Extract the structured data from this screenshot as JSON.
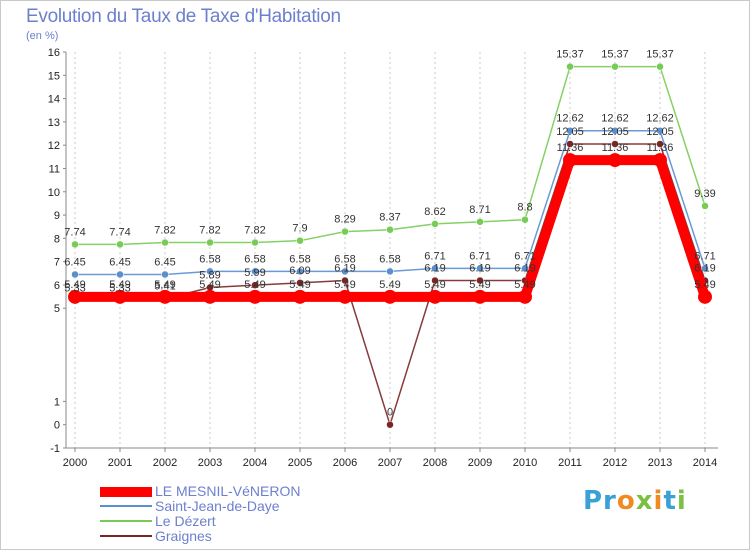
{
  "chart_data": {
    "type": "line",
    "title": "Evolution du Taux de Taxe d'Habitation",
    "subtitle": "(en %)",
    "xlabel": "",
    "ylabel": "",
    "ylim": [
      -1,
      16
    ],
    "yticks": [
      "-1",
      "0",
      "1",
      "5",
      "6",
      "7",
      "8",
      "9",
      "10",
      "11",
      "12",
      "13",
      "14",
      "15",
      "16"
    ],
    "ytick_values": [
      -1,
      0,
      1,
      5,
      6,
      7,
      8,
      9,
      10,
      11,
      12,
      13,
      14,
      15,
      16
    ],
    "x": [
      "2000",
      "2001",
      "2002",
      "2003",
      "2004",
      "2005",
      "2006",
      "2007",
      "2008",
      "2009",
      "2010",
      "2011",
      "2012",
      "2013",
      "2014"
    ],
    "series": [
      {
        "name": "Graignes",
        "color": "#7a2626",
        "values": [
          5.33,
          5.33,
          5.41,
          5.89,
          5.99,
          6.09,
          6.19,
          0,
          6.19,
          6.19,
          6.19,
          12.05,
          12.05,
          12.05,
          6.19
        ],
        "labels": [
          "5.33",
          "5.33",
          "5.41",
          "5.89",
          "5.99",
          "6.09",
          "6.19",
          "0",
          "6.19",
          "6.19",
          "6.19",
          "12.05",
          "12.05",
          "12.05",
          "6.19"
        ]
      },
      {
        "name": "Le Dézert",
        "color": "#77cc55",
        "values": [
          7.74,
          7.74,
          7.82,
          7.82,
          7.82,
          7.9,
          8.29,
          8.37,
          8.62,
          8.71,
          8.8,
          15.37,
          15.37,
          15.37,
          9.39
        ],
        "labels": [
          "7.74",
          "7.74",
          "7.82",
          "7.82",
          "7.82",
          "7.9",
          "8.29",
          "8.37",
          "8.62",
          "8.71",
          "8.8",
          "15.37",
          "15.37",
          "15.37",
          "9.39"
        ]
      },
      {
        "name": "Saint-Jean-de-Daye",
        "color": "#5a8fd0",
        "values": [
          6.45,
          6.45,
          6.45,
          6.58,
          6.58,
          6.58,
          6.58,
          6.58,
          6.71,
          6.71,
          6.71,
          12.62,
          12.62,
          12.62,
          6.71
        ],
        "labels": [
          "6.45",
          "6.45",
          "6.45",
          "6.58",
          "6.58",
          "6.58",
          "6.58",
          "6.58",
          "6.71",
          "6.71",
          "6.71",
          "12.62",
          "12.62",
          "12.62",
          "6.71"
        ]
      },
      {
        "name": "LE MESNIL-VéNERON",
        "color": "#ff0000",
        "values": [
          5.49,
          5.49,
          5.49,
          5.49,
          5.49,
          5.49,
          5.49,
          5.49,
          5.49,
          5.49,
          5.49,
          11.36,
          11.36,
          11.36,
          5.49
        ],
        "labels": [
          "5.49",
          "5.49",
          "5.49",
          "5.49",
          "5.49",
          "5.49",
          "5.49",
          "5.49",
          "5.49",
          "5.49",
          "5.49",
          "11.36",
          "11.36",
          "11.36",
          "5.49"
        ]
      }
    ],
    "legend_position": "bottom-left",
    "grid": "vertical-dashed"
  },
  "legend": [
    {
      "name": "LE MESNIL-VéNERON",
      "color": "#ff0000"
    },
    {
      "name": "Saint-Jean-de-Daye",
      "color": "#5a8fd0"
    },
    {
      "name": "Le Dézert",
      "color": "#77cc55"
    },
    {
      "name": "Graignes",
      "color": "#7a2626"
    }
  ],
  "logo": {
    "text": "Proxiti"
  }
}
